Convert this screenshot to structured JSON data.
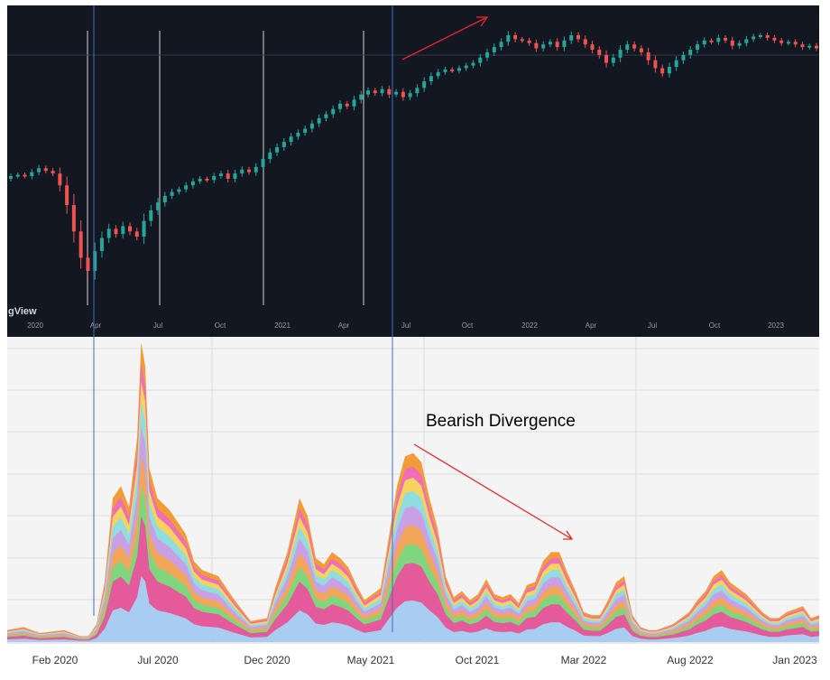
{
  "chart_data": [
    {
      "type": "candlestick",
      "watermark": "gView",
      "x_ticks": [
        "2020",
        "Apr",
        "Jul",
        "Oct",
        "2021",
        "Apr",
        "Jul",
        "Oct",
        "2022",
        "Apr",
        "Jul",
        "Oct",
        "2023"
      ],
      "annotation": "rising trend arrow",
      "colors": {
        "background": "#131722",
        "up": "#26a69a",
        "down": "#ef5350",
        "grid": "#2a2e39",
        "text": "#9598a1"
      },
      "series": [
        {
          "values": [
            [
              1.0,
              1.02
            ],
            [
              1.02,
              1.03
            ],
            [
              1.03,
              1.02
            ],
            [
              1.02,
              1.05
            ],
            [
              1.05,
              1.08
            ],
            [
              1.08,
              1.06
            ],
            [
              1.06,
              1.04
            ],
            [
              1.04,
              0.95
            ],
            [
              0.95,
              0.8
            ],
            [
              0.8,
              0.6
            ],
            [
              0.6,
              0.4
            ],
            [
              0.4,
              0.3
            ],
            [
              0.3,
              0.45
            ],
            [
              0.45,
              0.55
            ],
            [
              0.55,
              0.62
            ],
            [
              0.62,
              0.58
            ],
            [
              0.58,
              0.64
            ],
            [
              0.64,
              0.6
            ],
            [
              0.6,
              0.56
            ],
            [
              0.56,
              0.68
            ],
            [
              0.68,
              0.76
            ],
            [
              0.76,
              0.82
            ],
            [
              0.82,
              0.87
            ],
            [
              0.87,
              0.9
            ],
            [
              0.9,
              0.92
            ],
            [
              0.92,
              0.95
            ],
            [
              0.95,
              0.98
            ],
            [
              0.98,
              1.0
            ],
            [
              1.0,
              0.99
            ],
            [
              0.99,
              1.02
            ],
            [
              1.02,
              1.04
            ],
            [
              1.04,
              1.0
            ],
            [
              1.0,
              1.04
            ],
            [
              1.04,
              1.07
            ],
            [
              1.07,
              1.05
            ],
            [
              1.05,
              1.09
            ],
            [
              1.09,
              1.15
            ],
            [
              1.15,
              1.2
            ],
            [
              1.2,
              1.24
            ],
            [
              1.24,
              1.28
            ],
            [
              1.28,
              1.32
            ],
            [
              1.32,
              1.35
            ],
            [
              1.35,
              1.38
            ],
            [
              1.38,
              1.42
            ],
            [
              1.42,
              1.46
            ],
            [
              1.46,
              1.49
            ],
            [
              1.49,
              1.53
            ],
            [
              1.53,
              1.57
            ],
            [
              1.57,
              1.55
            ],
            [
              1.55,
              1.6
            ],
            [
              1.6,
              1.64
            ],
            [
              1.64,
              1.67
            ],
            [
              1.67,
              1.65
            ],
            [
              1.65,
              1.68
            ],
            [
              1.68,
              1.64
            ],
            [
              1.64,
              1.66
            ],
            [
              1.66,
              1.62
            ],
            [
              1.62,
              1.65
            ],
            [
              1.65,
              1.69
            ],
            [
              1.69,
              1.74
            ],
            [
              1.74,
              1.78
            ],
            [
              1.78,
              1.81
            ],
            [
              1.81,
              1.83
            ],
            [
              1.83,
              1.82
            ],
            [
              1.82,
              1.84
            ],
            [
              1.84,
              1.86
            ],
            [
              1.86,
              1.88
            ],
            [
              1.88,
              1.92
            ],
            [
              1.92,
              1.96
            ],
            [
              1.96,
              2.0
            ],
            [
              2.0,
              2.04
            ],
            [
              2.04,
              2.09
            ],
            [
              2.09,
              2.06
            ],
            [
              2.06,
              2.05
            ],
            [
              2.05,
              2.03
            ],
            [
              2.03,
              1.99
            ],
            [
              1.99,
              2.02
            ],
            [
              2.02,
              2.04
            ],
            [
              2.04,
              2.0
            ],
            [
              2.0,
              2.05
            ],
            [
              2.05,
              2.09
            ],
            [
              2.09,
              2.06
            ],
            [
              2.06,
              2.02
            ],
            [
              2.02,
              1.98
            ],
            [
              1.98,
              1.94
            ],
            [
              1.94,
              1.88
            ],
            [
              1.88,
              1.92
            ],
            [
              1.92,
              1.98
            ],
            [
              1.98,
              2.02
            ],
            [
              2.02,
              1.99
            ],
            [
              1.99,
              1.96
            ],
            [
              1.96,
              1.9
            ],
            [
              1.9,
              1.84
            ],
            [
              1.84,
              1.8
            ],
            [
              1.8,
              1.85
            ],
            [
              1.85,
              1.9
            ],
            [
              1.9,
              1.94
            ],
            [
              1.94,
              1.98
            ],
            [
              1.98,
              2.02
            ],
            [
              2.02,
              2.05
            ],
            [
              2.05,
              2.04
            ],
            [
              2.04,
              2.07
            ],
            [
              2.07,
              2.05
            ],
            [
              2.05,
              2.01
            ],
            [
              2.01,
              2.03
            ],
            [
              2.03,
              2.06
            ],
            [
              2.06,
              2.08
            ],
            [
              2.08,
              2.09
            ],
            [
              2.09,
              2.07
            ],
            [
              2.07,
              2.05
            ],
            [
              2.05,
              2.03
            ],
            [
              2.03,
              2.04
            ],
            [
              2.04,
              2.02
            ],
            [
              2.02,
              2.0
            ],
            [
              2.0,
              2.01
            ],
            [
              2.01,
              1.99
            ]
          ]
        }
      ]
    },
    {
      "type": "area",
      "stacked": true,
      "title": "Bearish Divergence",
      "x_ticks": [
        "Feb 2020",
        "Jul 2020",
        "Dec 2020",
        "May 2021",
        "Oct 2021",
        "Mar 2022",
        "Aug 2022",
        "Jan 2023"
      ],
      "legend": "none",
      "grid": true,
      "colors": {
        "layers": [
          "#a8cdf0",
          "#e45a9a",
          "#7fd67f",
          "#f2a65a",
          "#c9a0e6",
          "#8fdde0",
          "#f4d35e",
          "#ee6fb6",
          "#f29c38"
        ]
      },
      "series": [
        {
          "values": [
            [
              0.0,
              4
            ],
            [
              0.02,
              5
            ],
            [
              0.04,
              3
            ],
            [
              0.07,
              4
            ],
            [
              0.09,
              2
            ],
            [
              0.1,
              2
            ],
            [
              0.11,
              6
            ],
            [
              0.12,
              20
            ],
            [
              0.13,
              48
            ],
            [
              0.14,
              52
            ],
            [
              0.15,
              45
            ],
            [
              0.16,
              68
            ],
            [
              0.165,
              100
            ],
            [
              0.17,
              92
            ],
            [
              0.175,
              58
            ],
            [
              0.185,
              48
            ],
            [
              0.2,
              44
            ],
            [
              0.21,
              40
            ],
            [
              0.22,
              36
            ],
            [
              0.23,
              27
            ],
            [
              0.24,
              24
            ],
            [
              0.26,
              22
            ],
            [
              0.28,
              14
            ],
            [
              0.3,
              7
            ],
            [
              0.32,
              8
            ],
            [
              0.33,
              18
            ],
            [
              0.345,
              30
            ],
            [
              0.36,
              48
            ],
            [
              0.37,
              42
            ],
            [
              0.38,
              28
            ],
            [
              0.39,
              26
            ],
            [
              0.4,
              30
            ],
            [
              0.41,
              28
            ],
            [
              0.42,
              25
            ],
            [
              0.43,
              19
            ],
            [
              0.44,
              14
            ],
            [
              0.45,
              16
            ],
            [
              0.46,
              18
            ],
            [
              0.47,
              35
            ],
            [
              0.48,
              52
            ],
            [
              0.49,
              62
            ],
            [
              0.5,
              63
            ],
            [
              0.51,
              60
            ],
            [
              0.52,
              48
            ],
            [
              0.53,
              38
            ],
            [
              0.54,
              22
            ],
            [
              0.55,
              15
            ],
            [
              0.56,
              17
            ],
            [
              0.57,
              14
            ],
            [
              0.58,
              16
            ],
            [
              0.59,
              21
            ],
            [
              0.6,
              16
            ],
            [
              0.61,
              15
            ],
            [
              0.62,
              16
            ],
            [
              0.63,
              13
            ],
            [
              0.64,
              19
            ],
            [
              0.65,
              20
            ],
            [
              0.66,
              27
            ],
            [
              0.67,
              30
            ],
            [
              0.68,
              30
            ],
            [
              0.69,
              23
            ],
            [
              0.7,
              17
            ],
            [
              0.71,
              10
            ],
            [
              0.72,
              9
            ],
            [
              0.73,
              9
            ],
            [
              0.74,
              14
            ],
            [
              0.75,
              20
            ],
            [
              0.76,
              22
            ],
            [
              0.77,
              9
            ],
            [
              0.78,
              5
            ],
            [
              0.79,
              4
            ],
            [
              0.8,
              4
            ],
            [
              0.81,
              5
            ],
            [
              0.82,
              6
            ],
            [
              0.83,
              8
            ],
            [
              0.84,
              10
            ],
            [
              0.85,
              14
            ],
            [
              0.86,
              17
            ],
            [
              0.87,
              22
            ],
            [
              0.88,
              24
            ],
            [
              0.89,
              20
            ],
            [
              0.9,
              18
            ],
            [
              0.91,
              16
            ],
            [
              0.92,
              13
            ],
            [
              0.93,
              10
            ],
            [
              0.94,
              8
            ],
            [
              0.95,
              8
            ],
            [
              0.96,
              10
            ],
            [
              0.97,
              11
            ],
            [
              0.98,
              12
            ],
            [
              0.99,
              8
            ],
            [
              1.0,
              9
            ]
          ]
        }
      ]
    }
  ]
}
